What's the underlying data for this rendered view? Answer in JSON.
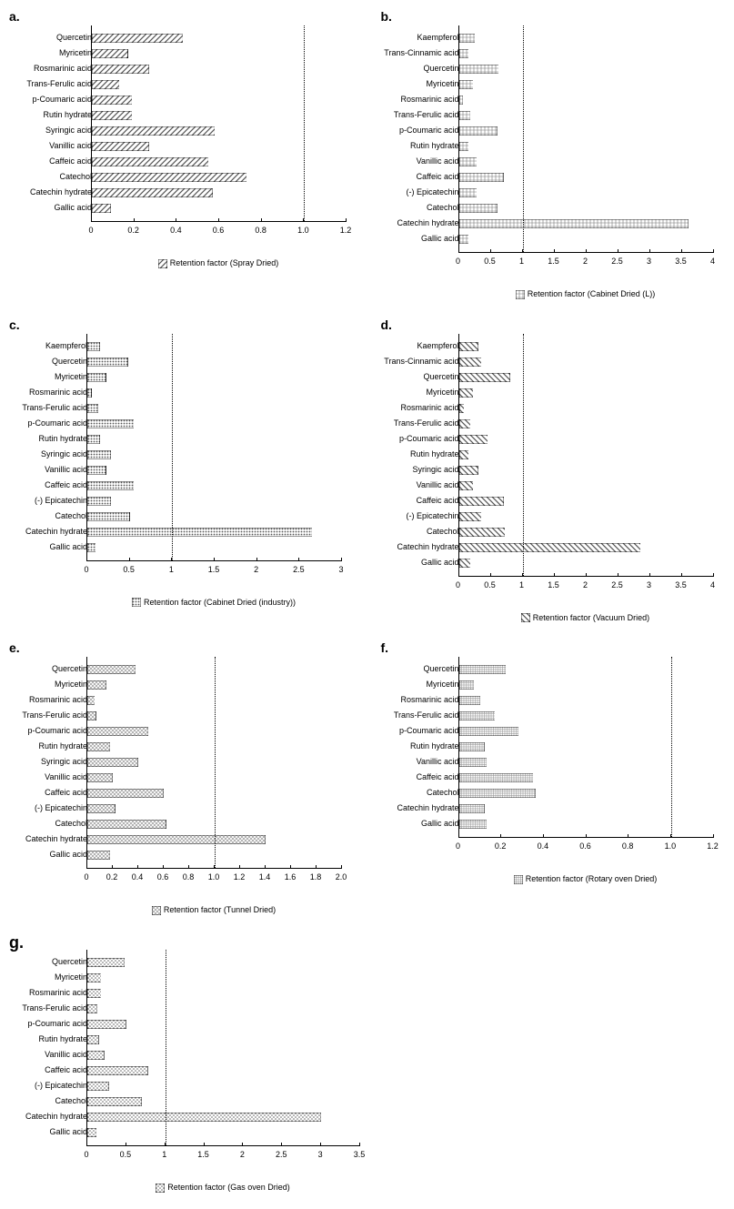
{
  "global": {
    "bar_color": "#808080",
    "bar_border": "#000000",
    "ref_line_color": "#000000",
    "background": "#ffffff",
    "label_fontsize": 9,
    "panel_label_fontsize": 14
  },
  "patterns": {
    "diag1": "diagonal-left",
    "grid": "crosshatch",
    "dots": "dots-dense",
    "diag2": "diagonal-right",
    "hlines": "horizontal",
    "check": "checker",
    "dots2": "dots-sparse"
  },
  "panels": [
    {
      "id": "a",
      "label": "a.",
      "legend": "Retention factor (Spray Dried)",
      "pattern": "diag1",
      "label_width": 90,
      "xmax": 1.2,
      "xstep": 0.2,
      "ref": 1,
      "categories": [
        "Quercetin",
        "Myricetin",
        "Rosmarinic acid",
        "Trans-Ferulic acid",
        "p-Coumaric acid",
        "Rutin hydrate",
        "Syringic acid",
        "Vanillic acid",
        "Caffeic acid",
        "Catechol",
        "Catechin hydrate",
        "Gallic acid"
      ],
      "values": [
        0.43,
        0.17,
        0.27,
        0.13,
        0.19,
        0.19,
        0.58,
        0.27,
        0.55,
        0.73,
        0.57,
        0.09
      ]
    },
    {
      "id": "b",
      "label": "b.",
      "legend": "Retention factor (Cabinet Dried (L))",
      "pattern": "grid",
      "label_width": 85,
      "xmax": 4,
      "xstep": 0.5,
      "ref": 1,
      "categories": [
        "Kaempferol",
        "Trans-Cinnamic acid",
        "Quercetin",
        "Myricetin",
        "Rosmarinic acid",
        "Trans-Ferulic acid",
        "p-Coumaric acid",
        "Rutin hydrate",
        "Vanillic acid",
        "Caffeic acid",
        "(-) Epicatechin",
        "Catechol",
        "Catechin hydrate",
        "Gallic acid"
      ],
      "values": [
        0.25,
        0.15,
        0.62,
        0.22,
        0.06,
        0.18,
        0.6,
        0.15,
        0.28,
        0.7,
        0.28,
        0.6,
        3.6,
        0.15
      ]
    },
    {
      "id": "c",
      "label": "c.",
      "legend": "Retention factor (Cabinet Dried (industry))",
      "pattern": "dots",
      "label_width": 85,
      "xmax": 3,
      "xstep": 0.5,
      "ref": 1,
      "categories": [
        "Kaempferol",
        "Quercetin",
        "Myricetin",
        "Rosmarinic acid",
        "Trans-Ferulic acid",
        "p-Coumaric acid",
        "Rutin hydrate",
        "Syringic acid",
        "Vanillic acid",
        "Caffeic acid",
        "(-) Epicatechin",
        "Catechol",
        "Catechin hydrate",
        "Gallic acid"
      ],
      "values": [
        0.15,
        0.48,
        0.22,
        0.05,
        0.13,
        0.55,
        0.15,
        0.28,
        0.22,
        0.55,
        0.28,
        0.5,
        2.65,
        0.1
      ]
    },
    {
      "id": "d",
      "label": "d.",
      "legend": "Retention factor (Vacuum Dried)",
      "pattern": "diag2",
      "label_width": 85,
      "xmax": 4,
      "xstep": 0.5,
      "ref": 1,
      "categories": [
        "Kaempferol",
        "Trans-Cinnamic acid",
        "Quercetin",
        "Myricetin",
        "Rosmarinic acid",
        "Trans-Ferulic acid",
        "p-Coumaric acid",
        "Rutin hydrate",
        "Syringic acid",
        "Vanillic acid",
        "Caffeic acid",
        "(-) Epicatechin",
        "Catechol",
        "Catechin hydrate",
        "Gallic acid"
      ],
      "values": [
        0.3,
        0.35,
        0.8,
        0.22,
        0.08,
        0.18,
        0.45,
        0.15,
        0.3,
        0.22,
        0.7,
        0.35,
        0.72,
        2.85,
        0.18
      ]
    },
    {
      "id": "e",
      "label": "e.",
      "legend": "Retention factor (Tunnel Dried)",
      "pattern": "hlines",
      "label_width": 85,
      "xmax": 2,
      "xstep": 0.2,
      "ref": 1,
      "categories": [
        "Quercetin",
        "Myricetin",
        "Rosmarinic acid",
        "Trans-Ferulic acid",
        "p-Coumaric acid",
        "Rutin hydrate",
        "Syringic acid",
        "Vanillic acid",
        "Caffeic acid",
        "(-) Epicatechin",
        "Catechol",
        "Catechin hydrate",
        "Gallic acid"
      ],
      "values": [
        0.38,
        0.15,
        0.06,
        0.07,
        0.48,
        0.18,
        0.4,
        0.2,
        0.6,
        0.22,
        0.62,
        1.4,
        0.18
      ]
    },
    {
      "id": "f",
      "label": "f.",
      "legend": "Retention factor (Rotary oven Dried)",
      "pattern": "check",
      "label_width": 85,
      "xmax": 1.2,
      "xstep": 0.2,
      "ref": 1,
      "categories": [
        "Quercetin",
        "Myricetin",
        "Rosmarinic acid",
        "Trans-Ferulic acid",
        "p-Coumaric acid",
        "Rutin hydrate",
        "Vanillic acid",
        "Caffeic acid",
        "Catechol",
        "Catechin hydrate",
        "Gallic acid"
      ],
      "values": [
        0.22,
        0.07,
        0.1,
        0.17,
        0.28,
        0.12,
        0.13,
        0.35,
        0.36,
        0.12,
        0.13
      ]
    },
    {
      "id": "g",
      "label": "g.",
      "legend": "Retention factor (Gas oven Dried)",
      "pattern": "dots2",
      "label_width": 85,
      "xmax": 3.5,
      "xstep": 0.5,
      "ref": 1,
      "categories": [
        "Quercetin",
        "Myricetin",
        "Rosmarinic acid",
        "Trans-Ferulic acid",
        "p-Coumaric acid",
        "Rutin hydrate",
        "Vanillic acid",
        "Caffeic acid",
        "(-) Epicatechin",
        "Catechol",
        "Catechin hydrate",
        "Gallic acid"
      ],
      "values": [
        0.48,
        0.18,
        0.18,
        0.13,
        0.5,
        0.15,
        0.22,
        0.78,
        0.28,
        0.7,
        3.0,
        0.12
      ]
    }
  ]
}
